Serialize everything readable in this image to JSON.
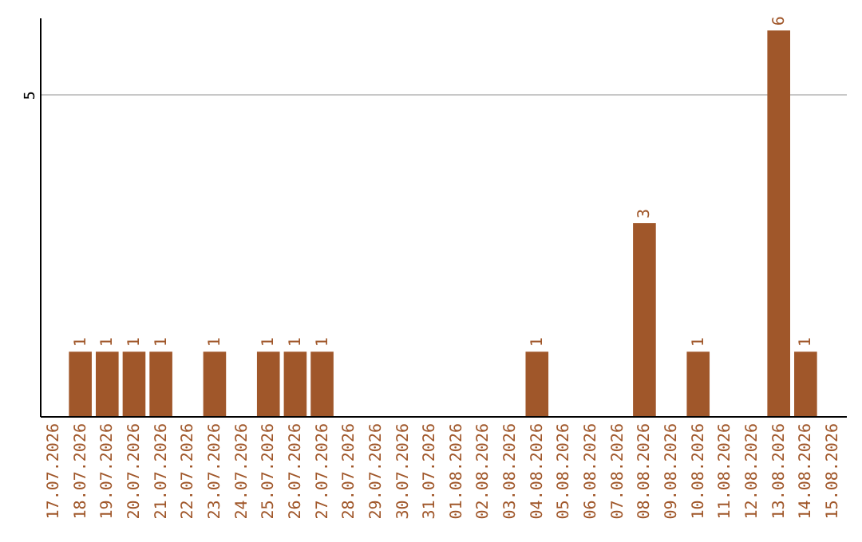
{
  "chart_data": {
    "type": "bar",
    "categories": [
      "17.07.2026",
      "18.07.2026",
      "19.07.2026",
      "20.07.2026",
      "21.07.2026",
      "22.07.2026",
      "23.07.2026",
      "24.07.2026",
      "25.07.2026",
      "26.07.2026",
      "27.07.2026",
      "28.07.2026",
      "29.07.2026",
      "30.07.2026",
      "31.07.2026",
      "01.08.2026",
      "02.08.2026",
      "03.08.2026",
      "04.08.2026",
      "05.08.2026",
      "06.08.2026",
      "07.08.2026",
      "08.08.2026",
      "09.08.2026",
      "10.08.2026",
      "11.08.2026",
      "12.08.2026",
      "13.08.2026",
      "14.08.2026",
      "15.08.2026"
    ],
    "values": [
      0,
      1,
      1,
      1,
      1,
      0,
      1,
      0,
      1,
      1,
      1,
      0,
      0,
      0,
      0,
      0,
      0,
      0,
      1,
      0,
      0,
      0,
      3,
      0,
      1,
      0,
      0,
      6,
      1,
      0
    ],
    "value_labels": [
      null,
      "1",
      "1",
      "1",
      "1",
      null,
      "1",
      null,
      "1",
      "1",
      "1",
      null,
      null,
      null,
      null,
      null,
      null,
      null,
      "1",
      null,
      null,
      null,
      "3",
      null,
      "1",
      null,
      null,
      "6",
      "1",
      null
    ],
    "color": "#a0572a",
    "ylim": [
      0,
      6.2
    ],
    "yticks": [
      5
    ],
    "grid": "y"
  }
}
